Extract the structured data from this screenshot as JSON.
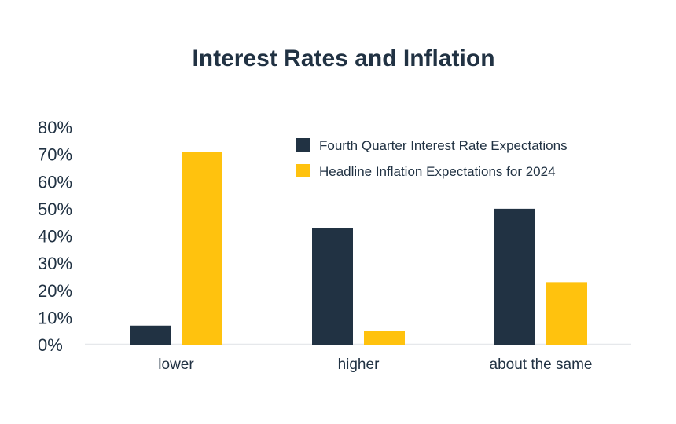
{
  "chart_data": {
    "type": "bar",
    "title": "Interest Rates and Inflation",
    "xlabel": "",
    "ylabel": "",
    "categories": [
      "lower",
      "higher",
      "about the same"
    ],
    "series": [
      {
        "name": "Fourth Quarter Interest Rate Expectations",
        "color": "#213243",
        "values": [
          7,
          43,
          50
        ]
      },
      {
        "name": "Headline Inflation Expectations for 2024",
        "color": "#FFC20E",
        "values": [
          71,
          5,
          23
        ]
      }
    ],
    "ylim": [
      0,
      80
    ],
    "y_ticks": [
      "0%",
      "10%",
      "20%",
      "30%",
      "40%",
      "50%",
      "60%",
      "70%",
      "80%"
    ],
    "y_tick_values": [
      0,
      10,
      20,
      30,
      40,
      50,
      60,
      70,
      80
    ],
    "grid": false,
    "legend_position": "top-right"
  }
}
